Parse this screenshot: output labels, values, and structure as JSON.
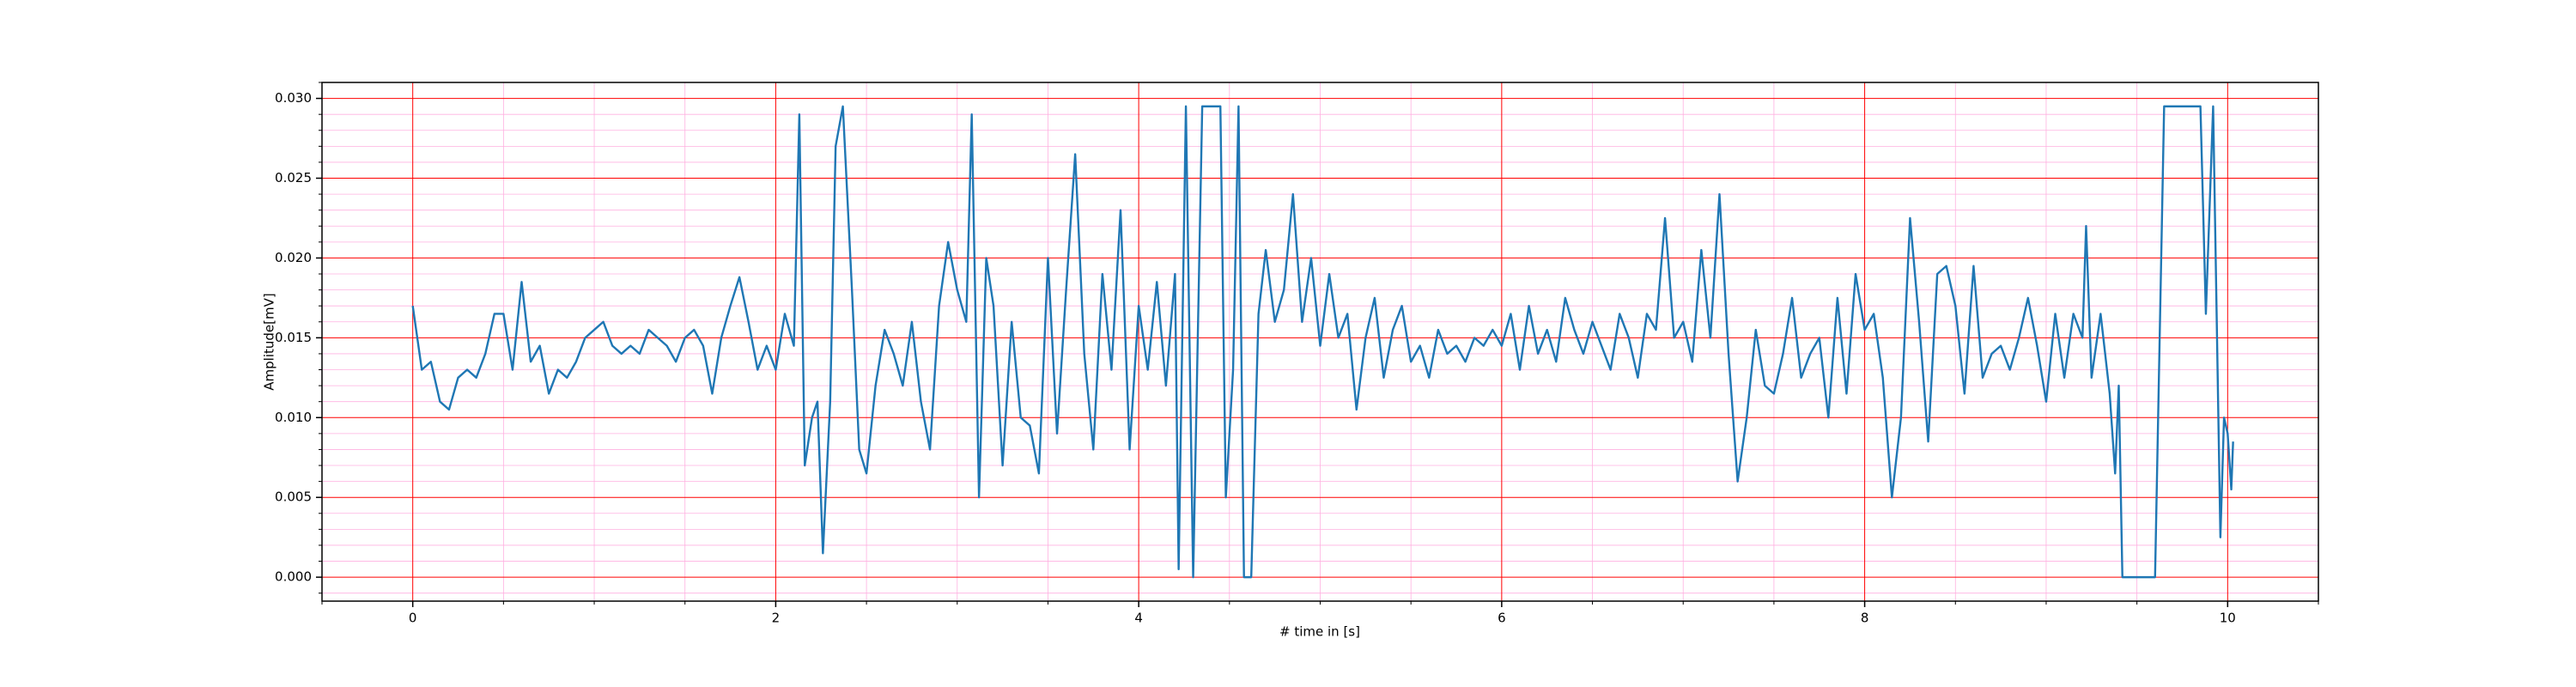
{
  "chart_data": {
    "type": "line",
    "xlabel": "# time in [s]",
    "ylabel": "Amplitude[mV]",
    "color": "#1f77b4",
    "grid": true,
    "major_grid_color": "#ff0000",
    "minor_grid_color": "#ffb0e0",
    "xlim": [
      -0.5,
      10.5
    ],
    "ylim": [
      -0.0015,
      0.031
    ],
    "xticks": [
      0,
      2,
      4,
      6,
      8,
      10
    ],
    "yticks": [
      {
        "value": 0,
        "label": "0.000"
      },
      {
        "value": 0.005,
        "label": "0.005"
      },
      {
        "value": 0.01,
        "label": "0.010"
      },
      {
        "value": 0.015,
        "label": "0.015"
      },
      {
        "value": 0.02,
        "label": "0.020"
      },
      {
        "value": 0.025,
        "label": "0.025"
      },
      {
        "value": 0.03,
        "label": "0.030"
      }
    ],
    "xminorticks": [
      -0.5,
      0.5,
      1,
      1.5,
      2.5,
      3,
      3.5,
      4.5,
      5,
      5.5,
      6.5,
      7,
      7.5,
      8.5,
      9,
      9.5,
      10.5
    ],
    "yminorticks": [
      -0.001,
      0.001,
      0.002,
      0.003,
      0.004,
      0.006,
      0.007,
      0.008,
      0.009,
      0.011,
      0.012,
      0.013,
      0.014,
      0.016,
      0.017,
      0.018,
      0.019,
      0.021,
      0.022,
      0.023,
      0.024,
      0.026,
      0.027,
      0.028,
      0.029,
      0.031
    ],
    "x": [
      0,
      0.05,
      0.1,
      0.15,
      0.2,
      0.25,
      0.3,
      0.35,
      0.4,
      0.45,
      0.5,
      0.55,
      0.6,
      0.65,
      0.7,
      0.75,
      0.8,
      0.85,
      0.9,
      0.95,
      1,
      1.05,
      1.1,
      1.15,
      1.2,
      1.25,
      1.3,
      1.35,
      1.4,
      1.45,
      1.5,
      1.55,
      1.6,
      1.65,
      1.7,
      1.75,
      1.8,
      1.85,
      1.9,
      1.95,
      2,
      2.05,
      2.1,
      2.13,
      2.16,
      2.2,
      2.23,
      2.26,
      2.3,
      2.33,
      2.37,
      2.42,
      2.46,
      2.5,
      2.55,
      2.6,
      2.65,
      2.7,
      2.75,
      2.8,
      2.85,
      2.9,
      2.95,
      3,
      3.05,
      3.08,
      3.12,
      3.16,
      3.2,
      3.25,
      3.3,
      3.35,
      3.4,
      3.45,
      3.5,
      3.55,
      3.6,
      3.65,
      3.7,
      3.75,
      3.8,
      3.85,
      3.9,
      3.95,
      4,
      4.05,
      4.1,
      4.15,
      4.2,
      4.22,
      4.26,
      4.3,
      4.35,
      4.45,
      4.48,
      4.52,
      4.55,
      4.58,
      4.62,
      4.66,
      4.7,
      4.75,
      4.8,
      4.85,
      4.9,
      4.95,
      5,
      5.05,
      5.1,
      5.15,
      5.2,
      5.25,
      5.3,
      5.35,
      5.4,
      5.45,
      5.5,
      5.55,
      5.6,
      5.65,
      5.7,
      5.75,
      5.8,
      5.85,
      5.9,
      5.95,
      6,
      6.05,
      6.1,
      6.15,
      6.2,
      6.25,
      6.3,
      6.35,
      6.4,
      6.45,
      6.5,
      6.55,
      6.6,
      6.65,
      6.7,
      6.75,
      6.8,
      6.85,
      6.9,
      6.95,
      7,
      7.05,
      7.1,
      7.15,
      7.2,
      7.25,
      7.3,
      7.35,
      7.4,
      7.45,
      7.5,
      7.55,
      7.6,
      7.65,
      7.7,
      7.75,
      7.8,
      7.85,
      7.9,
      7.95,
      8,
      8.05,
      8.1,
      8.15,
      8.2,
      8.25,
      8.3,
      8.35,
      8.4,
      8.45,
      8.5,
      8.55,
      8.6,
      8.65,
      8.7,
      8.75,
      8.8,
      8.85,
      8.9,
      8.95,
      9,
      9.05,
      9.1,
      9.15,
      9.2,
      9.22,
      9.25,
      9.3,
      9.35,
      9.38,
      9.4,
      9.42,
      9.6,
      9.65,
      9.85,
      9.88,
      9.92,
      9.96,
      9.98,
      10,
      10.02,
      10.03
    ],
    "values": [
      0.017,
      0.013,
      0.0135,
      0.011,
      0.0105,
      0.0125,
      0.013,
      0.0125,
      0.014,
      0.0165,
      0.0165,
      0.013,
      0.0185,
      0.0135,
      0.0145,
      0.0115,
      0.013,
      0.0125,
      0.0135,
      0.015,
      0.0155,
      0.016,
      0.0145,
      0.014,
      0.0145,
      0.014,
      0.0155,
      0.015,
      0.0145,
      0.0135,
      0.015,
      0.0155,
      0.0145,
      0.0115,
      0.015,
      0.017,
      0.0188,
      0.016,
      0.013,
      0.0145,
      0.013,
      0.0165,
      0.0145,
      0.029,
      0.007,
      0.01,
      0.011,
      0.0015,
      0.011,
      0.027,
      0.0295,
      0.018,
      0.008,
      0.0065,
      0.012,
      0.0155,
      0.014,
      0.012,
      0.016,
      0.011,
      0.008,
      0.017,
      0.021,
      0.018,
      0.016,
      0.029,
      0.005,
      0.02,
      0.017,
      0.007,
      0.016,
      0.01,
      0.0095,
      0.0065,
      0.02,
      0.009,
      0.018,
      0.0265,
      0.014,
      0.008,
      0.019,
      0.013,
      0.023,
      0.008,
      0.017,
      0.013,
      0.0185,
      0.012,
      0.019,
      0.0005,
      0.0295,
      0,
      0.0295,
      0.0295,
      0.005,
      0.013,
      0.0295,
      0,
      0,
      0.0165,
      0.0205,
      0.016,
      0.018,
      0.024,
      0.016,
      0.02,
      0.0145,
      0.019,
      0.015,
      0.0165,
      0.0105,
      0.015,
      0.0175,
      0.0125,
      0.0155,
      0.017,
      0.0135,
      0.0145,
      0.0125,
      0.0155,
      0.014,
      0.0145,
      0.0135,
      0.015,
      0.0145,
      0.0155,
      0.0145,
      0.0165,
      0.013,
      0.017,
      0.014,
      0.0155,
      0.0135,
      0.0175,
      0.0155,
      0.014,
      0.016,
      0.0145,
      0.013,
      0.0165,
      0.015,
      0.0125,
      0.0165,
      0.0155,
      0.0225,
      0.015,
      0.016,
      0.0135,
      0.0205,
      0.015,
      0.024,
      0.014,
      0.006,
      0.01,
      0.0155,
      0.012,
      0.0115,
      0.014,
      0.0175,
      0.0125,
      0.014,
      0.015,
      0.01,
      0.0175,
      0.0115,
      0.019,
      0.0155,
      0.0165,
      0.0125,
      0.005,
      0.01,
      0.0225,
      0.016,
      0.0085,
      0.019,
      0.0195,
      0.017,
      0.0115,
      0.0195,
      0.0125,
      0.014,
      0.0145,
      0.013,
      0.015,
      0.0175,
      0.0145,
      0.011,
      0.0165,
      0.0125,
      0.0165,
      0.015,
      0.022,
      0.0125,
      0.0165,
      0.0115,
      0.0065,
      0.012,
      0,
      0,
      0.0295,
      0.0295,
      0.0165,
      0.0295,
      0.0025,
      0.01,
      0.009,
      0.0055,
      0.0085
    ]
  }
}
